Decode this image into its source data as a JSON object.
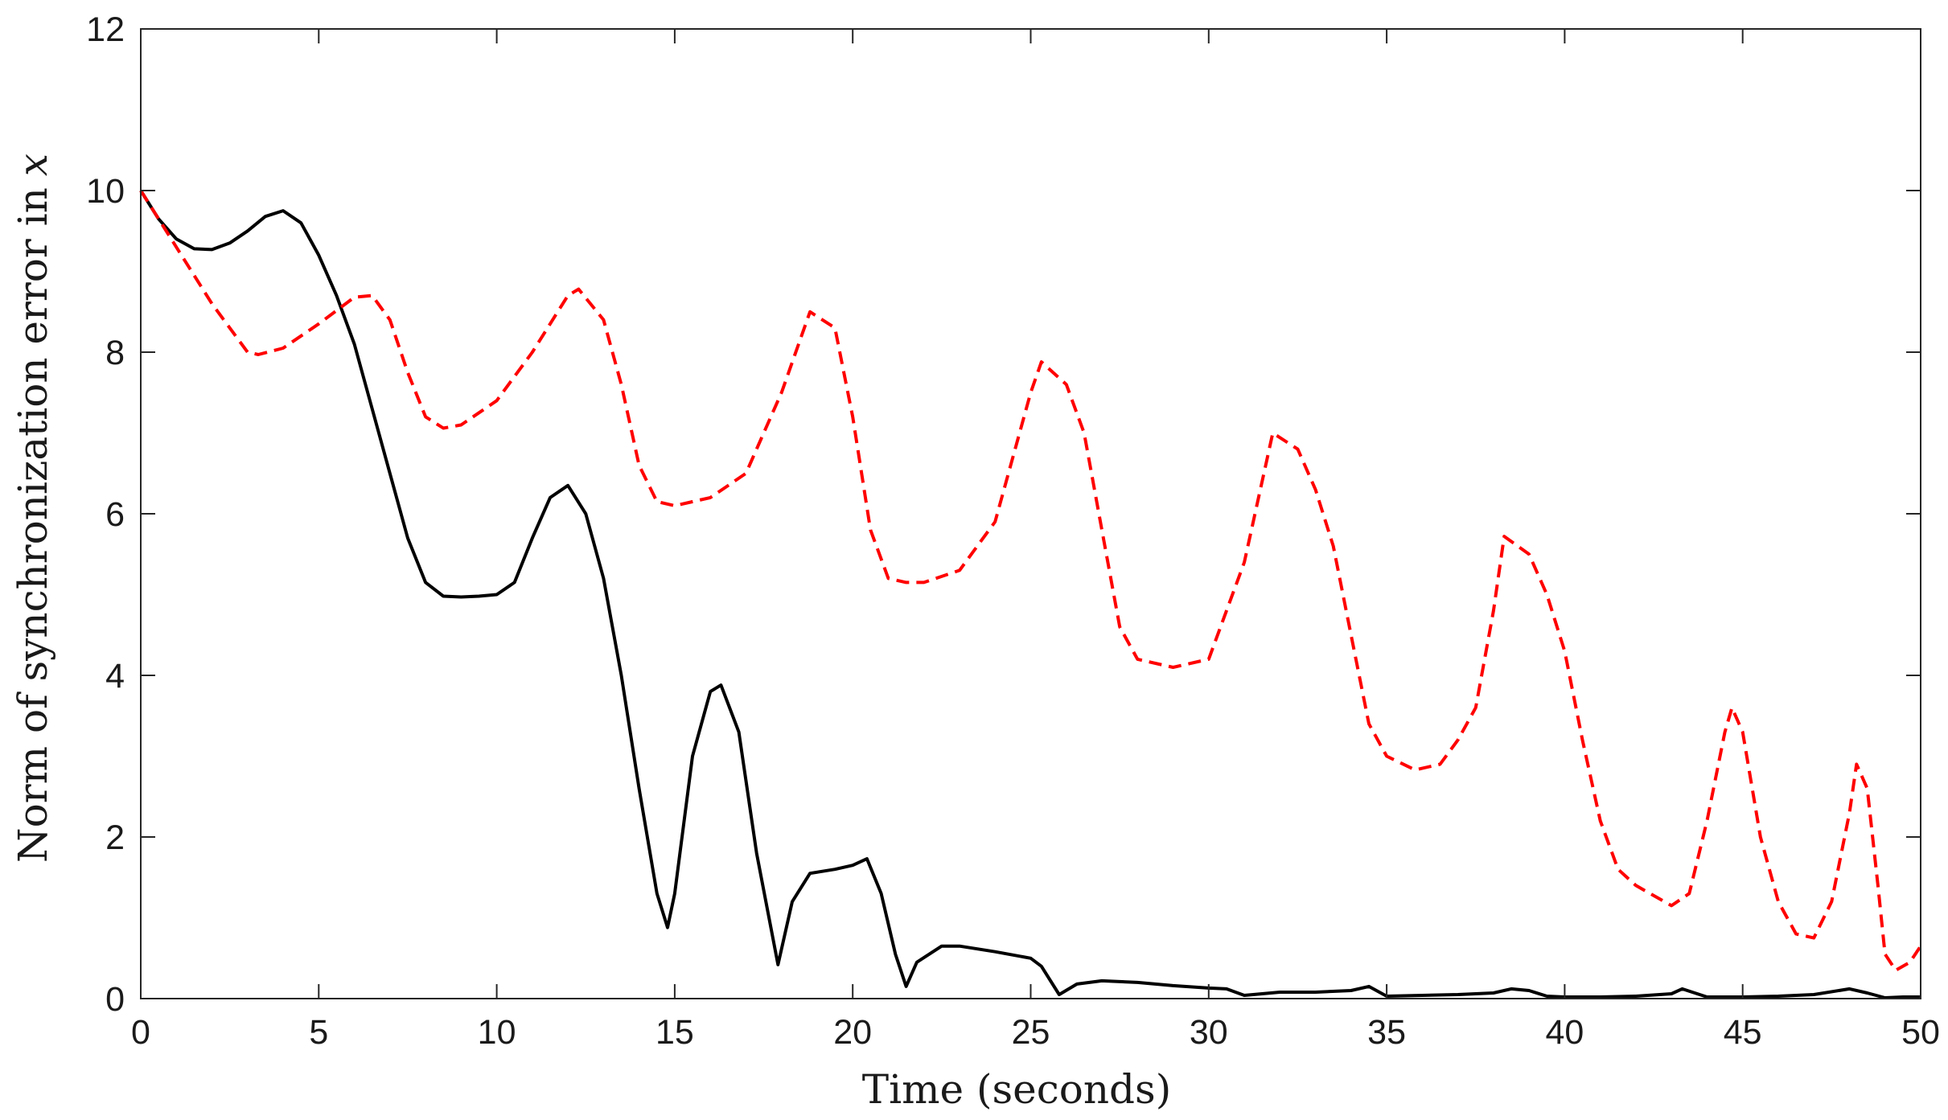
{
  "chart_data": {
    "type": "line",
    "title": "",
    "xlabel": "Time (seconds)",
    "ylabel": "Norm of synchronization error in",
    "ylabel_math": "x",
    "xlim": [
      0,
      50
    ],
    "ylim": [
      0,
      12
    ],
    "xticks": [
      0,
      5,
      10,
      15,
      20,
      25,
      30,
      35,
      40,
      45,
      50
    ],
    "yticks": [
      0,
      2,
      4,
      6,
      8,
      10,
      12
    ],
    "grid": false,
    "legend": "none",
    "series": [
      {
        "style": "solid",
        "color": "#000000",
        "x": [
          0,
          0.5,
          1,
          1.5,
          2,
          2.5,
          3,
          3.5,
          4,
          4.5,
          5,
          5.5,
          6,
          6.5,
          7,
          7.5,
          8,
          8.5,
          9,
          9.5,
          10,
          10.5,
          11,
          11.5,
          12,
          12.5,
          13,
          13.5,
          14,
          14.5,
          14.8,
          15,
          15.5,
          16,
          16.3,
          16.8,
          17.3,
          17.9,
          18.3,
          18.8,
          19.5,
          20,
          20.4,
          20.8,
          21.2,
          21.5,
          21.8,
          22.5,
          23,
          24,
          25,
          25.3,
          25.8,
          26.3,
          27,
          28,
          29,
          30,
          30.5,
          31,
          32,
          33,
          34,
          34.5,
          35,
          36,
          37,
          38,
          38.5,
          39,
          39.5,
          40,
          41,
          42,
          43,
          43.3,
          44,
          45,
          46,
          47,
          48,
          48.5,
          49,
          49.5,
          50
        ],
        "y": [
          10.0,
          9.65,
          9.4,
          9.28,
          9.27,
          9.35,
          9.5,
          9.68,
          9.75,
          9.6,
          9.2,
          8.7,
          8.1,
          7.3,
          6.5,
          5.7,
          5.15,
          4.98,
          4.97,
          4.98,
          5.0,
          5.15,
          5.7,
          6.2,
          6.35,
          6.0,
          5.2,
          4.0,
          2.6,
          1.3,
          0.88,
          1.3,
          3.0,
          3.8,
          3.88,
          3.3,
          1.8,
          0.42,
          1.2,
          1.55,
          1.6,
          1.65,
          1.73,
          1.3,
          0.55,
          0.15,
          0.45,
          0.65,
          0.65,
          0.58,
          0.5,
          0.4,
          0.05,
          0.18,
          0.22,
          0.2,
          0.16,
          0.13,
          0.12,
          0.04,
          0.08,
          0.08,
          0.1,
          0.15,
          0.03,
          0.04,
          0.05,
          0.07,
          0.12,
          0.1,
          0.03,
          0.02,
          0.02,
          0.03,
          0.06,
          0.12,
          0.02,
          0.02,
          0.03,
          0.05,
          0.12,
          0.07,
          0.01,
          0.02,
          0.02
        ]
      },
      {
        "style": "dashed",
        "color": "#ff0000",
        "x": [
          0,
          1,
          2,
          3,
          3.3,
          4,
          5,
          6,
          6.5,
          7,
          7.5,
          8,
          8.5,
          9,
          10,
          11,
          12,
          12.3,
          13,
          13.5,
          14,
          14.5,
          15,
          16,
          17,
          18,
          18.8,
          19.5,
          20,
          20.5,
          21,
          21.5,
          22,
          23,
          24,
          25,
          25.3,
          26,
          26.5,
          27,
          27.5,
          28,
          29,
          30,
          31,
          31.8,
          32.5,
          33,
          33.5,
          34,
          34.5,
          35,
          35.8,
          36.5,
          37,
          37.5,
          38,
          38.3,
          39,
          39.5,
          40,
          40.5,
          41,
          41.5,
          42,
          43,
          43.5,
          44,
          44.5,
          44.7,
          45,
          45.5,
          46,
          46.5,
          47,
          47.5,
          48,
          48.2,
          48.5,
          48.8,
          49,
          49.3,
          49.7,
          50
        ],
        "y": [
          10.0,
          9.3,
          8.6,
          8.0,
          7.97,
          8.05,
          8.35,
          8.68,
          8.7,
          8.4,
          7.75,
          7.2,
          7.06,
          7.1,
          7.4,
          8.0,
          8.7,
          8.78,
          8.4,
          7.6,
          6.6,
          6.15,
          6.1,
          6.2,
          6.5,
          7.5,
          8.5,
          8.3,
          7.2,
          5.8,
          5.2,
          5.15,
          5.15,
          5.3,
          5.9,
          7.5,
          7.88,
          7.6,
          7.0,
          5.8,
          4.6,
          4.2,
          4.1,
          4.2,
          5.4,
          7.0,
          6.8,
          6.3,
          5.6,
          4.5,
          3.4,
          3.0,
          2.83,
          2.9,
          3.2,
          3.6,
          4.8,
          5.72,
          5.5,
          5.0,
          4.3,
          3.2,
          2.2,
          1.6,
          1.4,
          1.15,
          1.3,
          2.2,
          3.3,
          3.6,
          3.3,
          2.0,
          1.2,
          0.8,
          0.75,
          1.2,
          2.3,
          2.9,
          2.6,
          1.4,
          0.55,
          0.35,
          0.45,
          0.65
        ]
      }
    ]
  }
}
